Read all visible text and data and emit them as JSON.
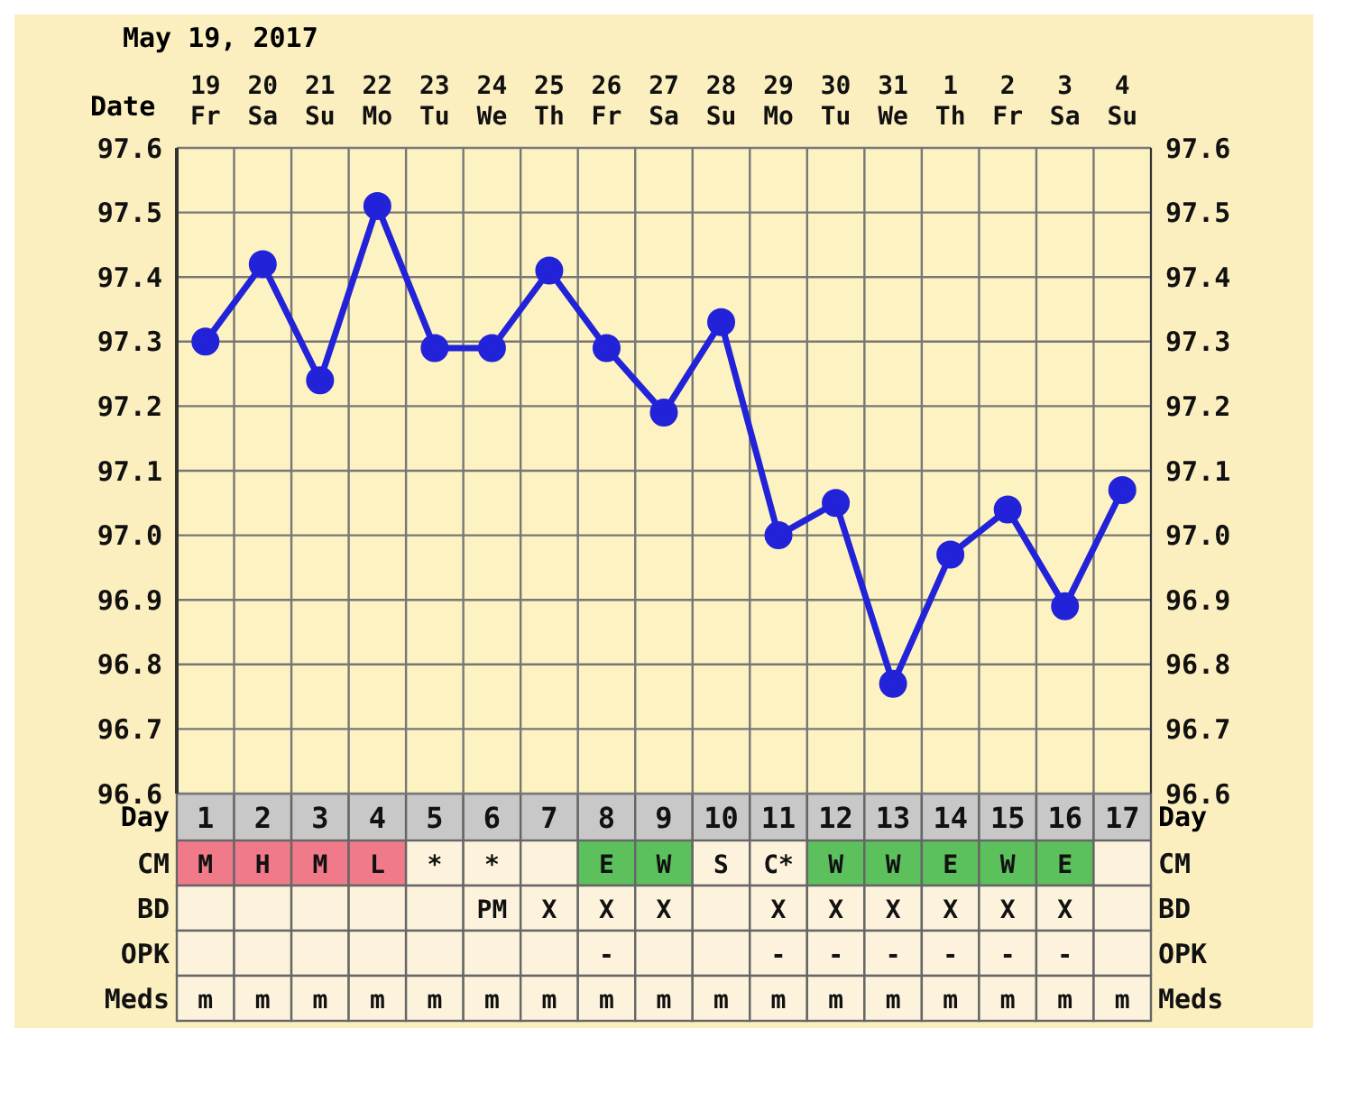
{
  "chart_data": [
    {
      "type": "line",
      "title": "May 19, 2017",
      "xlabel": "Date",
      "x2label": "Day",
      "categories": [
        "19\nFr",
        "20\nSa",
        "21\nSu",
        "22\nMo",
        "23\nTu",
        "24\nWe",
        "25\nTh",
        "26\nFr",
        "27\nSa",
        "28\nSu",
        "29\nMo",
        "30\nTu",
        "31\nWe",
        "1\nTh",
        "2\nFr",
        "3\nSa",
        "4\nSu"
      ],
      "series": [
        {
          "color": "#2222d8",
          "values": [
            97.3,
            97.42,
            97.24,
            97.51,
            97.29,
            97.29,
            97.41,
            97.29,
            97.19,
            97.33,
            97.0,
            97.05,
            96.77,
            96.97,
            97.04,
            96.89,
            97.07
          ]
        }
      ],
      "x2lim": [
        0.5,
        17.5
      ],
      "x2ticks": [
        1,
        2,
        3,
        4,
        5,
        6,
        7,
        8,
        9,
        10,
        11,
        12,
        13,
        14,
        15,
        16,
        17
      ],
      "ylim": [
        96.6,
        97.6
      ],
      "yticks": [
        {
          "value": 96.6,
          "label": "96.6"
        },
        {
          "value": 96.7,
          "label": "96.7"
        },
        {
          "value": 96.8,
          "label": "96.8"
        },
        {
          "value": 96.9,
          "label": "96.9"
        },
        {
          "value": 97.0,
          "label": "97.0"
        },
        {
          "value": 97.1,
          "label": "97.1"
        },
        {
          "value": 97.2,
          "label": "97.2"
        },
        {
          "value": 97.3,
          "label": "97.3"
        },
        {
          "value": 97.4,
          "label": "97.4"
        },
        {
          "value": 97.5,
          "label": "97.5"
        },
        {
          "value": 97.6,
          "label": "97.6"
        }
      ],
      "y2lim": [
        96.6,
        97.6
      ],
      "y2ticks": [
        {
          "value": 96.6,
          "label": "96.6"
        },
        {
          "value": 96.7,
          "label": "96.7"
        },
        {
          "value": 96.8,
          "label": "96.8"
        },
        {
          "value": 96.9,
          "label": "96.9"
        },
        {
          "value": 97.0,
          "label": "97.0"
        },
        {
          "value": 97.1,
          "label": "97.1"
        },
        {
          "value": 97.2,
          "label": "97.2"
        },
        {
          "value": 97.3,
          "label": "97.3"
        },
        {
          "value": 97.4,
          "label": "97.4"
        },
        {
          "value": 97.5,
          "label": "97.5"
        },
        {
          "value": 97.6,
          "label": "97.6"
        }
      ],
      "grid": true,
      "marker": "circle",
      "line_style": "solid"
    },
    {
      "type": "other",
      "y_categories": [
        "CM",
        "BD",
        "OPK",
        "Meds"
      ],
      "y2_categories": [
        "CM",
        "BD",
        "OPK",
        "Meds"
      ],
      "cell_labels": [
        [
          "M",
          "H",
          "M",
          "L",
          "*",
          "*",
          null,
          "E",
          "W",
          "S",
          "C*",
          "W",
          "W",
          "E",
          "W",
          "E",
          null
        ],
        [
          null,
          null,
          null,
          null,
          null,
          "PM",
          "X",
          "X",
          "X",
          null,
          "X",
          "X",
          "X",
          "X",
          "X",
          "X",
          null
        ],
        [
          null,
          null,
          null,
          null,
          null,
          null,
          null,
          "-",
          null,
          null,
          "-",
          "-",
          "-",
          "-",
          "-",
          "-",
          null
        ],
        [
          "m",
          "m",
          "m",
          "m",
          "m",
          "m",
          "m",
          "m",
          "m",
          "m",
          "m",
          "m",
          "m",
          "m",
          "m",
          "m",
          "m"
        ]
      ],
      "colors": [
        [
          "#f07a8a",
          "#f07a8a",
          "#f07a8a",
          "#f07a8a",
          "#fdf3dc",
          "#fdf3dc",
          "#fdf3dc",
          "#5cc05c",
          "#5cc05c",
          "#fdf3dc",
          "#fdf3dc",
          "#5cc05c",
          "#5cc05c",
          "#5cc05c",
          "#5cc05c",
          "#5cc05c",
          "#fdf3dc"
        ],
        [
          "#fdf3dc",
          "#fdf3dc",
          "#fdf3dc",
          "#fdf3dc",
          "#fdf3dc",
          "#fdf3dc",
          "#fdf3dc",
          "#fdf3dc",
          "#fdf3dc",
          "#fdf3dc",
          "#fdf3dc",
          "#fdf3dc",
          "#fdf3dc",
          "#fdf3dc",
          "#fdf3dc",
          "#fdf3dc",
          "#fdf3dc"
        ],
        [
          "#fdf3dc",
          "#fdf3dc",
          "#fdf3dc",
          "#fdf3dc",
          "#fdf3dc",
          "#fdf3dc",
          "#fdf3dc",
          "#fdf3dc",
          "#fdf3dc",
          "#fdf3dc",
          "#fdf3dc",
          "#fdf3dc",
          "#fdf3dc",
          "#fdf3dc",
          "#fdf3dc",
          "#fdf3dc",
          "#fdf3dc"
        ],
        [
          "#fdf3dc",
          "#fdf3dc",
          "#fdf3dc",
          "#fdf3dc",
          "#fdf3dc",
          "#fdf3dc",
          "#fdf3dc",
          "#fdf3dc",
          "#fdf3dc",
          "#fdf3dc",
          "#fdf3dc",
          "#fdf3dc",
          "#fdf3dc",
          "#fdf3dc",
          "#fdf3dc",
          "#fdf3dc",
          "#fdf3dc"
        ]
      ]
    }
  ]
}
